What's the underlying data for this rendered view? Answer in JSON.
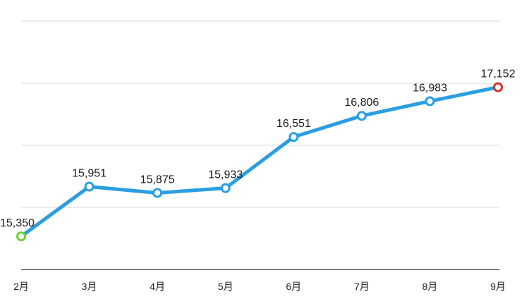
{
  "chart_data": {
    "type": "line",
    "categories": [
      "2月",
      "3月",
      "4月",
      "5月",
      "6月",
      "7月",
      "8月",
      "9月"
    ],
    "values": [
      15350,
      15951,
      15875,
      15933,
      16551,
      16806,
      16983,
      17152
    ],
    "data_labels": [
      "15,350",
      "15,951",
      "15,875",
      "15,933",
      "16,551",
      "16,806",
      "16,983",
      "17,152"
    ],
    "title": "",
    "xlabel": "",
    "ylabel": "",
    "ylim": [
      14950,
      17950
    ],
    "grid": true,
    "legend": "none"
  },
  "colors": {
    "line": "#2a9ee0",
    "first_point": "#6fd13a",
    "last_point": "#d9302a",
    "grid": "#d9d9d9"
  }
}
